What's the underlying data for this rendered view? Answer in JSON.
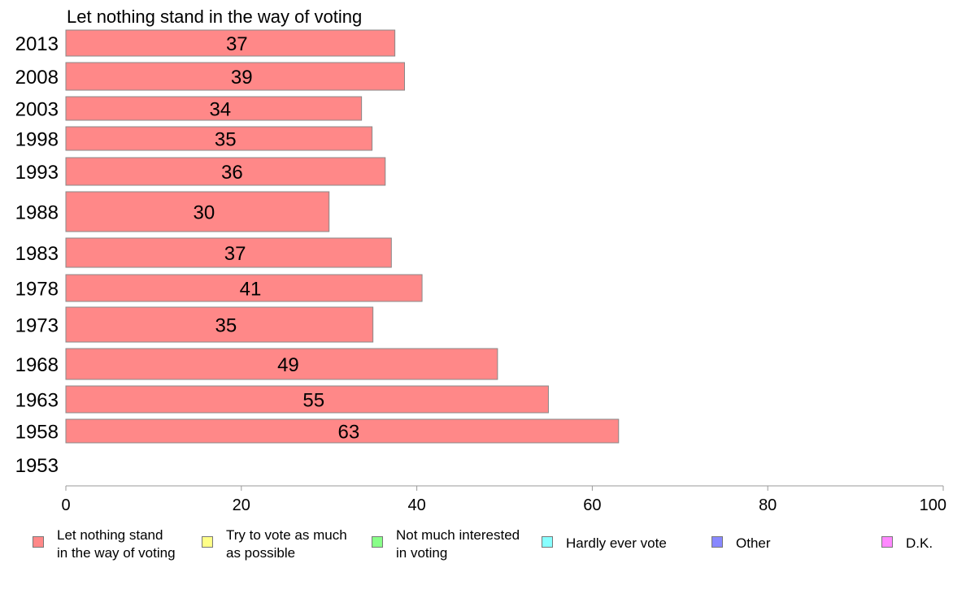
{
  "chart_data": {
    "type": "bar",
    "orientation": "horizontal",
    "title": "Let nothing stand in the way of voting",
    "categories": [
      "2013",
      "2008",
      "2003",
      "1998",
      "1993",
      "1988",
      "1983",
      "1978",
      "1973",
      "1968",
      "1963",
      "1958",
      "1953"
    ],
    "values": [
      37.5,
      38.6,
      33.7,
      34.9,
      36.4,
      30.0,
      37.1,
      40.6,
      35.0,
      49.2,
      55.0,
      63.0,
      null
    ],
    "data_labels": [
      "37",
      "39",
      "34",
      "35",
      "36",
      "30",
      "37",
      "41",
      "35",
      "49",
      "55",
      "63",
      ""
    ],
    "xlim": [
      0,
      100
    ],
    "xticks": [
      0,
      20,
      40,
      60,
      80,
      100
    ],
    "grid": false,
    "bar_color": "#ff8888",
    "bar_edge_color": "#888888",
    "legend": {
      "placement": "bottom",
      "items": [
        {
          "label": "Let nothing stand\nin the way of voting",
          "color": "#ff8888"
        },
        {
          "label": "Try to vote as much\nas possible",
          "color": "#ffff88"
        },
        {
          "label": "Not much interested\nin voting",
          "color": "#88ff88"
        },
        {
          "label": "Hardly ever vote",
          "color": "#88ffff"
        },
        {
          "label": "Other",
          "color": "#8888ff"
        },
        {
          "label": "D.K.",
          "color": "#ff88ff"
        }
      ]
    }
  }
}
